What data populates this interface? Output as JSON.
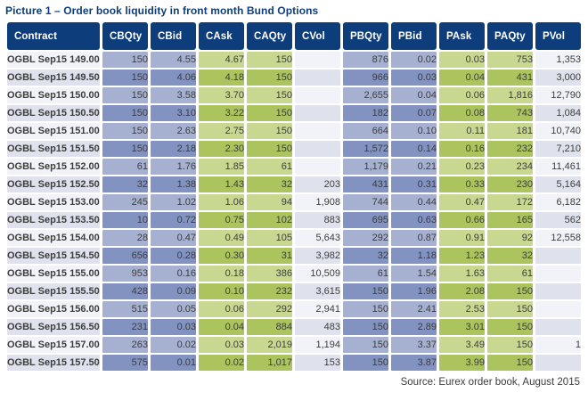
{
  "title": "Picture 1 – Order book liquidity in front month Bund Options",
  "source": "Source: Eurex order book, August 2015",
  "colors": {
    "header_bg": "#0d3d7b",
    "title_color": "#0d3d7b",
    "blue_light": "#a6b0d1",
    "blue_dark": "#8292c1",
    "green_light": "#c9d890",
    "green_dark": "#abc45e",
    "neutral_light": "#f2f3f8",
    "neutral_dark": "#dfe2ec",
    "cell_text": "#3d3d3d",
    "header_text": "#ffffff",
    "page_bg": "#ffffff"
  },
  "table": {
    "columns": [
      "Contract",
      "CBQty",
      "CBid",
      "CAsk",
      "CAQty",
      "CVol",
      "PBQty",
      "PBid",
      "PAsk",
      "PAQty",
      "PVol"
    ],
    "rows": [
      [
        "OGBL Sep15 149.00",
        "150",
        "4.55",
        "4.67",
        "150",
        "",
        "876",
        "0.02",
        "0.03",
        "753",
        "1,353"
      ],
      [
        "OGBL Sep15 149.50",
        "150",
        "4.06",
        "4.18",
        "150",
        "",
        "966",
        "0.03",
        "0.04",
        "431",
        "3,000"
      ],
      [
        "OGBL Sep15 150.00",
        "150",
        "3.58",
        "3.70",
        "150",
        "",
        "2,655",
        "0.04",
        "0.06",
        "1,816",
        "12,790"
      ],
      [
        "OGBL Sep15 150.50",
        "150",
        "3.10",
        "3.22",
        "150",
        "",
        "182",
        "0.07",
        "0.08",
        "743",
        "1,084"
      ],
      [
        "OGBL Sep15 151.00",
        "150",
        "2.63",
        "2.75",
        "150",
        "",
        "664",
        "0.10",
        "0.11",
        "181",
        "10,740"
      ],
      [
        "OGBL Sep15 151.50",
        "150",
        "2.18",
        "2.30",
        "150",
        "",
        "1,572",
        "0.14",
        "0.16",
        "232",
        "7,210"
      ],
      [
        "OGBL Sep15 152.00",
        "61",
        "1.76",
        "1.85",
        "61",
        "",
        "1,179",
        "0.21",
        "0.23",
        "234",
        "11,461"
      ],
      [
        "OGBL Sep15 152.50",
        "32",
        "1.38",
        "1.43",
        "32",
        "203",
        "431",
        "0.31",
        "0.33",
        "230",
        "5,164"
      ],
      [
        "OGBL Sep15 153.00",
        "245",
        "1.02",
        "1.06",
        "94",
        "1,908",
        "744",
        "0.44",
        "0.47",
        "172",
        "6,182"
      ],
      [
        "OGBL Sep15 153.50",
        "10",
        "0.72",
        "0.75",
        "102",
        "883",
        "695",
        "0.63",
        "0.66",
        "165",
        "562"
      ],
      [
        "OGBL Sep15 154.00",
        "28",
        "0.47",
        "0.49",
        "105",
        "5,643",
        "292",
        "0.87",
        "0.91",
        "92",
        "12,558"
      ],
      [
        "OGBL Sep15 154.50",
        "656",
        "0.28",
        "0.30",
        "31",
        "3,982",
        "32",
        "1.18",
        "1.23",
        "32",
        ""
      ],
      [
        "OGBL Sep15 155.00",
        "953",
        "0.16",
        "0.18",
        "386",
        "10,509",
        "61",
        "1.54",
        "1.63",
        "61",
        ""
      ],
      [
        "OGBL Sep15 155.50",
        "428",
        "0.09",
        "0.10",
        "232",
        "3,615",
        "150",
        "1.96",
        "2.08",
        "150",
        ""
      ],
      [
        "OGBL Sep15 156.00",
        "515",
        "0.05",
        "0.06",
        "292",
        "2,941",
        "150",
        "2.41",
        "2.53",
        "150",
        ""
      ],
      [
        "OGBL Sep15 156.50",
        "231",
        "0.03",
        "0.04",
        "884",
        "483",
        "150",
        "2.89",
        "3.01",
        "150",
        ""
      ],
      [
        "OGBL Sep15 157.00",
        "263",
        "0.02",
        "0.03",
        "2,019",
        "1,194",
        "150",
        "3.37",
        "3.49",
        "150",
        "1"
      ],
      [
        "OGBL Sep15 157.50",
        "575",
        "0.01",
        "0.02",
        "1,017",
        "153",
        "150",
        "3.87",
        "3.99",
        "150",
        ""
      ]
    ]
  }
}
